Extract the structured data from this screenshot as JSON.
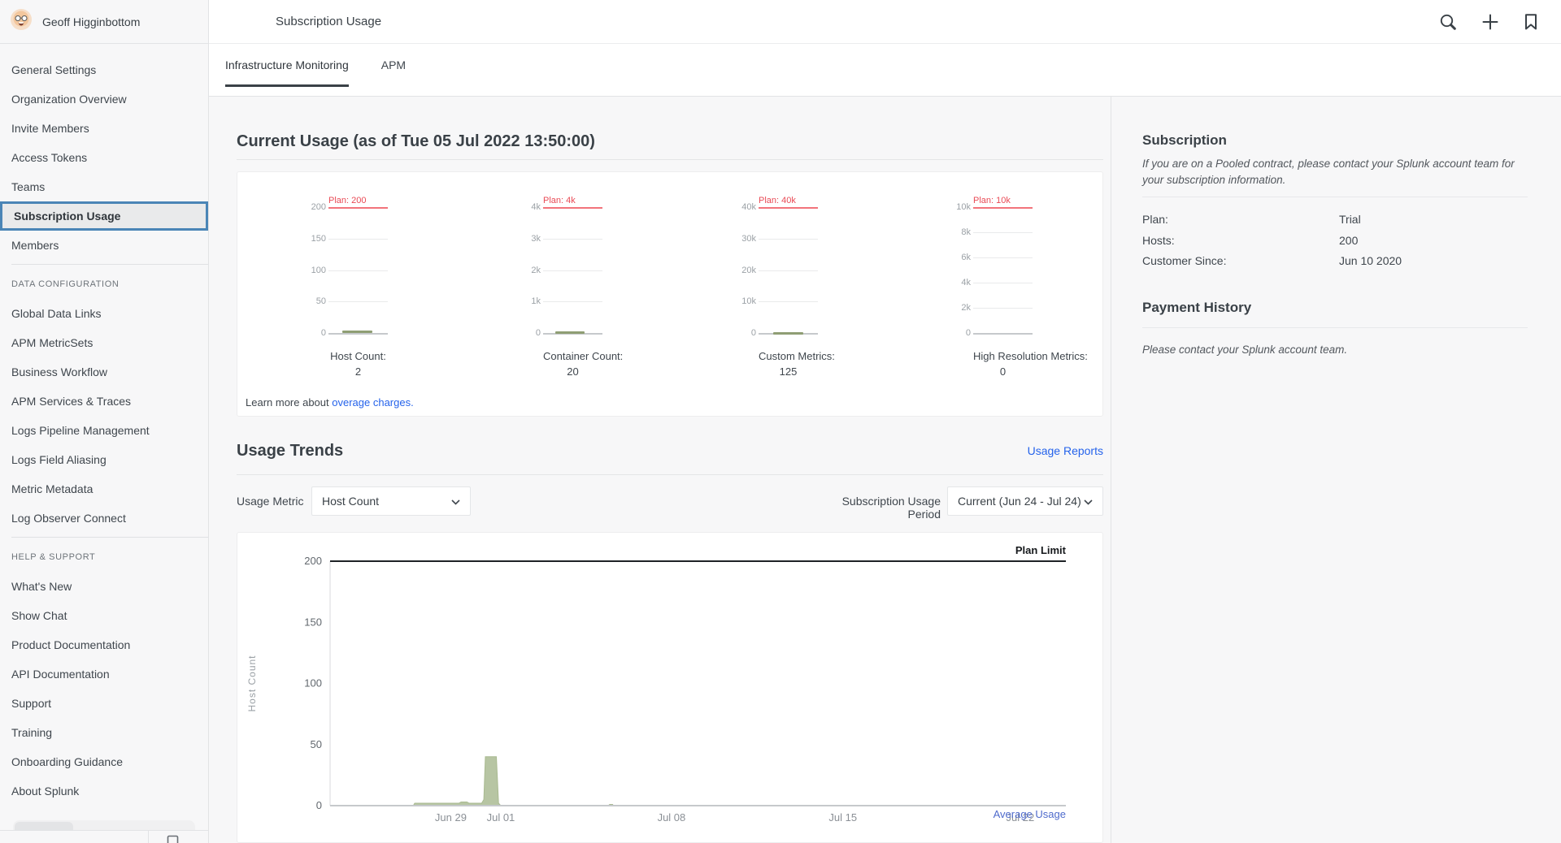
{
  "sidebar": {
    "user": "Geoff Higginbottom",
    "selected": "Subscription Usage",
    "sections": [
      {
        "label": "",
        "items": [
          "General Settings",
          "Organization Overview",
          "Invite Members",
          "Access Tokens",
          "Teams",
          "Subscription Usage",
          "Members"
        ]
      },
      {
        "label": "DATA CONFIGURATION",
        "items": [
          "Global Data Links",
          "APM MetricSets",
          "Business Workflow",
          "APM Services & Traces",
          "Logs Pipeline Management",
          "Logs Field Aliasing",
          "Metric Metadata",
          "Log Observer Connect"
        ]
      },
      {
        "label": "HELP & SUPPORT",
        "items": [
          "What's New",
          "Show Chat",
          "Product Documentation",
          "API Documentation",
          "Support",
          "Training",
          "Onboarding Guidance",
          "About Splunk"
        ]
      }
    ]
  },
  "header": {
    "title": "Subscription Usage",
    "icons": [
      "search-icon",
      "add-icon",
      "bookmark-icon"
    ]
  },
  "tabs": [
    {
      "label": "Infrastructure Monitoring",
      "active": true
    },
    {
      "label": "APM",
      "active": false
    }
  ],
  "current_usage": {
    "title": "Current Usage (as of Tue 05 Jul 2022 13:50:00)",
    "learn_prefix": "Learn more about",
    "learn_link": "overage charges."
  },
  "usage_trends": {
    "title": "Usage Trends",
    "reports_link": "Usage Reports",
    "metric_label": "Usage Metric",
    "metric_value": "Host Count",
    "period_label": "Subscription Usage Period",
    "period_value": "Current (Jun 24 - Jul 24)"
  },
  "subscription_panel": {
    "title": "Subscription",
    "note": "If you are on a Pooled contract, please contact your Splunk account team for your subscription information.",
    "rows": [
      {
        "label": "Plan:",
        "value": "Trial"
      },
      {
        "label": "Hosts:",
        "value": "200"
      },
      {
        "label": "Customer Since:",
        "value": "Jun 10 2020"
      }
    ],
    "payment_title": "Payment History",
    "payment_note": "Please contact your Splunk account team."
  },
  "colors": {
    "plan_red_text": "#e94a55",
    "plan_red_line": "#f2737b",
    "spark_olive": "#8f9e74",
    "area_fill": "#b7c5a3",
    "area_edge": "#a9ba90",
    "link_blue": "#2563eb",
    "avg_blue": "#4f6bcc",
    "plan_limit_line": "#1e2226",
    "selected_border": "#4a85b6"
  },
  "chart_data": {
    "mini": [
      {
        "type": "sparkline",
        "title": "Host Count:",
        "value": "2",
        "plan_label": "Plan: 200",
        "plan": 200,
        "ticks": [
          "200",
          "150",
          "100",
          "50",
          "0"
        ],
        "spark": [
          0.23,
          0.74,
          2
        ]
      },
      {
        "type": "sparkline",
        "title": "Container Count:",
        "value": "20",
        "plan_label": "Plan: 4k",
        "plan": 4000,
        "ticks": [
          "4k",
          "3k",
          "2k",
          "1k",
          "0"
        ],
        "spark": [
          0.2,
          0.7,
          1
        ]
      },
      {
        "type": "sparkline",
        "title": "Custom Metrics:",
        "value": "125",
        "plan_label": "Plan: 40k",
        "plan": 40000,
        "ticks": [
          "40k",
          "30k",
          "20k",
          "10k",
          "0"
        ],
        "spark": [
          0.25,
          0.75,
          0
        ]
      },
      {
        "type": "sparkline",
        "title": "High Resolution Metrics:",
        "value": "0",
        "plan_label": "Plan: 10k",
        "plan": 10000,
        "ticks": [
          "10k",
          "8k",
          "6k",
          "4k",
          "2k",
          "0"
        ],
        "spark": null
      }
    ],
    "trend": {
      "type": "area",
      "ylabel": "Host Count",
      "plan_limit": 200,
      "plan_limit_label": "Plan Limit",
      "legend": "Average Usage",
      "yticks": [
        200,
        150,
        100,
        50,
        0
      ],
      "ylim": [
        0,
        200
      ],
      "xticks": [
        {
          "label": "Jun 29",
          "f": 0.164
        },
        {
          "label": "Jul 01",
          "f": 0.232
        },
        {
          "label": "Jul 08",
          "f": 0.464
        },
        {
          "label": "Jul 15",
          "f": 0.697
        },
        {
          "label": "Jul 22",
          "f": 0.938
        }
      ],
      "points": [
        [
          0,
          0
        ],
        [
          0.113,
          0
        ],
        [
          0.115,
          2
        ],
        [
          0.175,
          2
        ],
        [
          0.178,
          3
        ],
        [
          0.186,
          3
        ],
        [
          0.189,
          2
        ],
        [
          0.206,
          2
        ],
        [
          0.209,
          5
        ],
        [
          0.211,
          40
        ],
        [
          0.226,
          40
        ],
        [
          0.229,
          2
        ],
        [
          0.232,
          0
        ],
        [
          0.378,
          0
        ],
        [
          0.38,
          1
        ],
        [
          0.384,
          1
        ],
        [
          0.385,
          0
        ],
        [
          1,
          0
        ]
      ]
    }
  }
}
